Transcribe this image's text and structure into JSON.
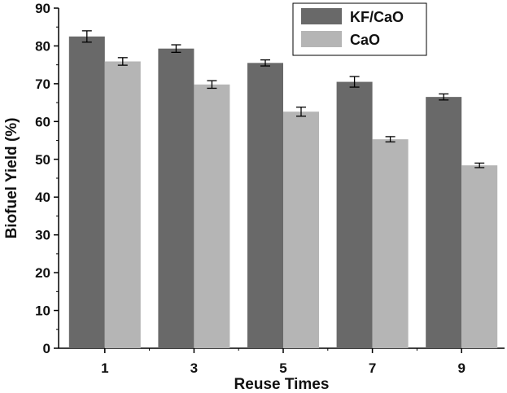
{
  "chart_data": {
    "type": "bar",
    "xlabel": "Reuse Times",
    "ylabel": "Biofuel Yield (%)",
    "ylim": [
      0,
      90
    ],
    "yticks": [
      0,
      10,
      20,
      30,
      40,
      50,
      60,
      70,
      80,
      90
    ],
    "categories": [
      "1",
      "3",
      "5",
      "7",
      "9"
    ],
    "series": [
      {
        "name": "KF/CaO",
        "values": [
          82.5,
          79.3,
          75.5,
          70.5,
          66.5
        ],
        "errors": [
          1.5,
          1.0,
          0.8,
          1.4,
          0.8
        ],
        "color": "#696969"
      },
      {
        "name": "CaO",
        "values": [
          75.9,
          69.8,
          62.6,
          55.3,
          48.4
        ],
        "errors": [
          1.0,
          1.0,
          1.2,
          0.7,
          0.6
        ],
        "color": "#b5b5b5"
      }
    ],
    "legend_position": "top-right",
    "grid": false
  }
}
